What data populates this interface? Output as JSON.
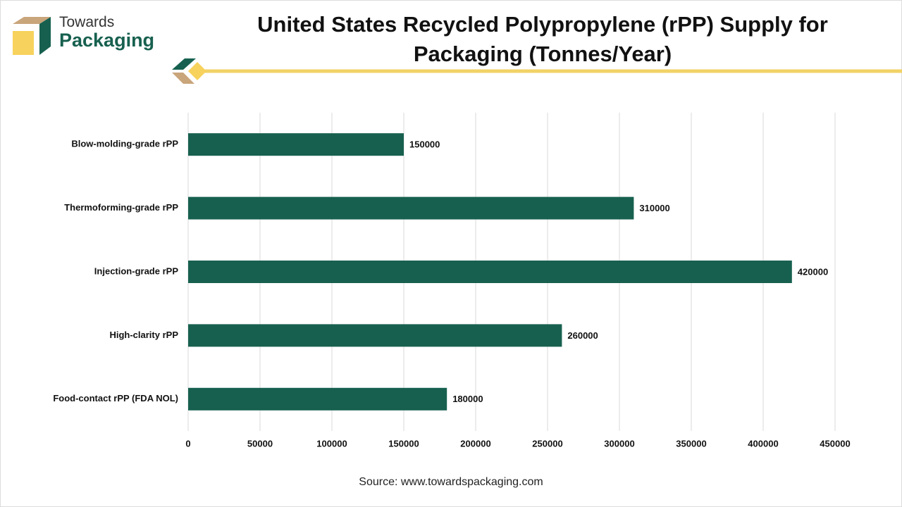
{
  "logo": {
    "line1": "Towards",
    "line2": "Packaging"
  },
  "chart_data": {
    "type": "bar",
    "orientation": "horizontal",
    "title": "United States Recycled Polypropylene (rPP) Supply for Packaging (Tonnes/Year)",
    "categories": [
      "Blow-molding-grade rPP",
      "Thermoforming-grade rPP",
      "Injection-grade rPP",
      "High-clarity rPP",
      "Food-contact rPP (FDA NOL)"
    ],
    "values": [
      150000,
      310000,
      420000,
      260000,
      180000
    ],
    "color": "#17604f",
    "xlim": [
      0,
      450000
    ],
    "xticks": [
      0,
      50000,
      100000,
      150000,
      200000,
      250000,
      300000,
      350000,
      400000,
      450000
    ],
    "grid": true
  },
  "source": "Source: www.towardspackaging.com"
}
